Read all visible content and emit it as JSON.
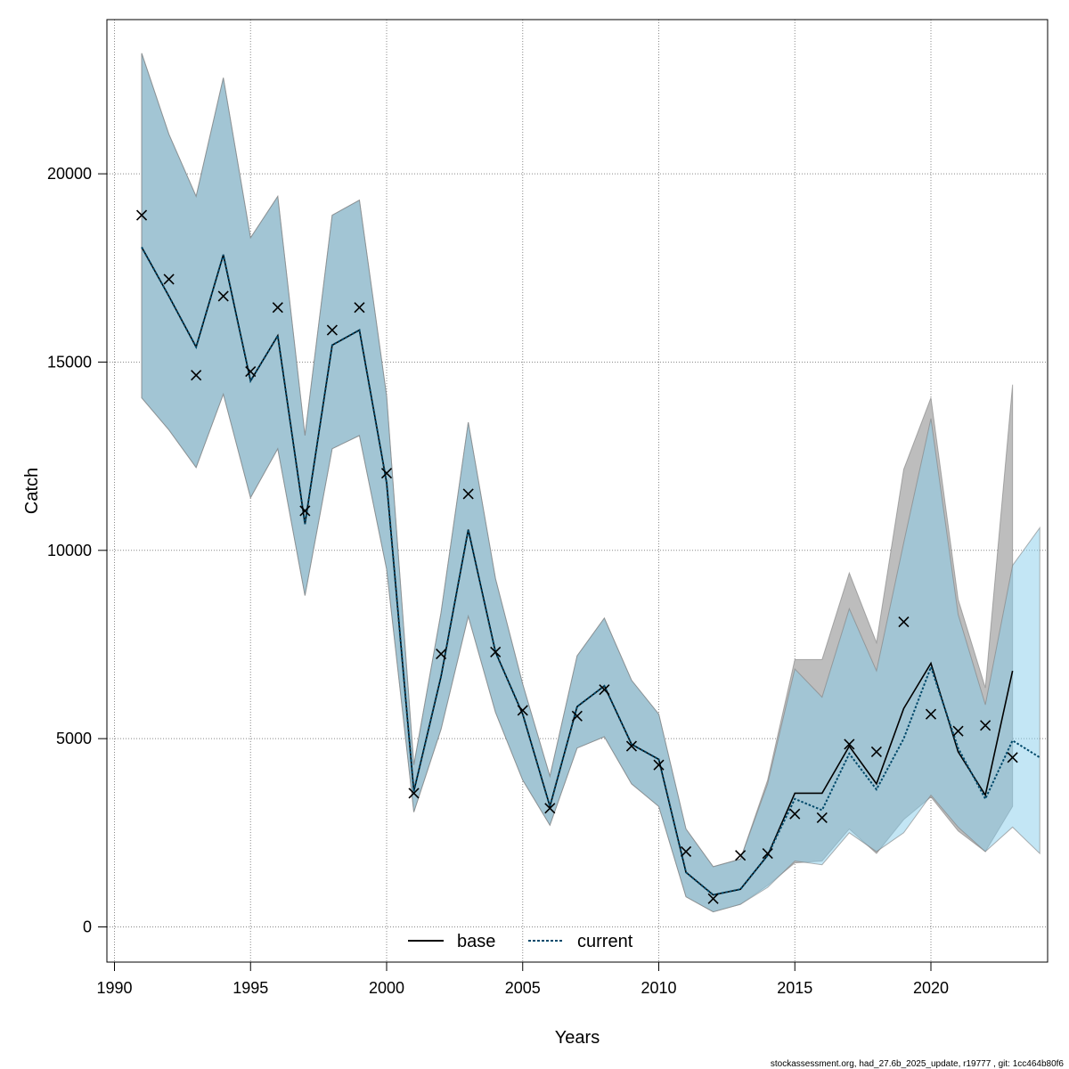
{
  "chart_data": {
    "type": "line",
    "title": "",
    "xlabel": "Years",
    "ylabel": "Catch",
    "xlim": [
      1990,
      2024
    ],
    "ylim": [
      0,
      23000
    ],
    "x_ticks": [
      1990,
      1995,
      2000,
      2005,
      2010,
      2015,
      2020
    ],
    "y_ticks": [
      0,
      5000,
      10000,
      15000,
      20000
    ],
    "grid": true,
    "legend_position": "bottom-center",
    "colors": {
      "base_band": "#bdbdbd",
      "current_band": "#87ceeb",
      "current_line": "#00496a",
      "base_line": "#000000",
      "observed": "#000000",
      "grid": "#888888"
    },
    "series": [
      {
        "name": "base",
        "style": "solid",
        "x": [
          1991,
          1992,
          1993,
          1994,
          1995,
          1996,
          1997,
          1998,
          1999,
          2000,
          2001,
          2002,
          2003,
          2004,
          2005,
          2006,
          2007,
          2008,
          2009,
          2010,
          2011,
          2012,
          2013,
          2014,
          2015,
          2016,
          2017,
          2018,
          2019,
          2020,
          2021,
          2022,
          2023
        ],
        "values": [
          18050,
          16750,
          15400,
          17850,
          14500,
          15700,
          10700,
          15450,
          15850,
          11800,
          3600,
          6650,
          10550,
          7300,
          5650,
          3200,
          5850,
          6400,
          4850,
          4450,
          1450,
          850,
          1000,
          1900,
          3550,
          3550,
          4800,
          3800,
          5800,
          7000,
          4650,
          3500,
          6800
        ],
        "lower": [
          14050,
          13200,
          12200,
          14150,
          11400,
          12700,
          8800,
          12700,
          13050,
          9500,
          3050,
          5250,
          8250,
          5700,
          3900,
          2700,
          4750,
          5050,
          3800,
          3200,
          800,
          400,
          600,
          1100,
          1700,
          1750,
          2600,
          1950,
          2850,
          3450,
          2550,
          2000,
          3200
        ],
        "upper": [
          23200,
          21050,
          19400,
          22550,
          18300,
          19400,
          13050,
          18900,
          19300,
          14100,
          4300,
          8350,
          13400,
          9250,
          6450,
          4000,
          7200,
          8200,
          6550,
          5650,
          2600,
          1600,
          1800,
          3900,
          7100,
          7100,
          9400,
          7550,
          12150,
          14050,
          8700,
          6350,
          14400
        ]
      },
      {
        "name": "current",
        "style": "dotted",
        "x": [
          1991,
          1992,
          1993,
          1994,
          1995,
          1996,
          1997,
          1998,
          1999,
          2000,
          2001,
          2002,
          2003,
          2004,
          2005,
          2006,
          2007,
          2008,
          2009,
          2010,
          2011,
          2012,
          2013,
          2014,
          2015,
          2016,
          2017,
          2018,
          2019,
          2020,
          2021,
          2022,
          2023,
          2024
        ],
        "values": [
          18050,
          16750,
          15400,
          17850,
          14500,
          15700,
          10700,
          15450,
          15850,
          11800,
          3600,
          6650,
          10550,
          7300,
          5650,
          3200,
          5850,
          6400,
          4850,
          4450,
          1450,
          850,
          1000,
          1900,
          3400,
          3100,
          4600,
          3650,
          5000,
          6900,
          4750,
          3400,
          4950,
          4500
        ],
        "lower": [
          14050,
          13200,
          12200,
          14150,
          11400,
          12700,
          8800,
          12700,
          13050,
          9500,
          3050,
          5250,
          8250,
          5700,
          3900,
          2700,
          4750,
          5050,
          3800,
          3200,
          800,
          400,
          600,
          1050,
          1750,
          1650,
          2500,
          2000,
          2500,
          3500,
          2650,
          2000,
          2650,
          1950
        ],
        "upper": [
          23200,
          21050,
          19400,
          22550,
          18300,
          19400,
          13050,
          18900,
          19300,
          14100,
          4300,
          8350,
          13400,
          9250,
          6450,
          4000,
          7200,
          8200,
          6550,
          5650,
          2600,
          1600,
          1800,
          3800,
          6850,
          6100,
          8450,
          6800,
          10200,
          13500,
          8300,
          5900,
          9600,
          10600
        ]
      },
      {
        "name": "",
        "style": "cross",
        "x": [
          1991,
          1992,
          1993,
          1994,
          1995,
          1996,
          1997,
          1998,
          1999,
          2000,
          2001,
          2002,
          2003,
          2004,
          2005,
          2006,
          2007,
          2008,
          2009,
          2010,
          2011,
          2012,
          2013,
          2014,
          2015,
          2016,
          2017,
          2018,
          2019,
          2020,
          2021,
          2022,
          2023
        ],
        "values": [
          18900,
          17200,
          14650,
          16750,
          14750,
          16450,
          11050,
          15850,
          16450,
          12050,
          3550,
          7250,
          11500,
          7300,
          5750,
          3150,
          5600,
          6300,
          4800,
          4300,
          2000,
          750,
          1900,
          1950,
          3000,
          2900,
          4850,
          4650,
          8100,
          5650,
          5200,
          5350,
          4500
        ]
      }
    ],
    "footer": "stockassessment.org, had_27.6b_2025_update, r19777 , git: 1cc464b80f6"
  }
}
